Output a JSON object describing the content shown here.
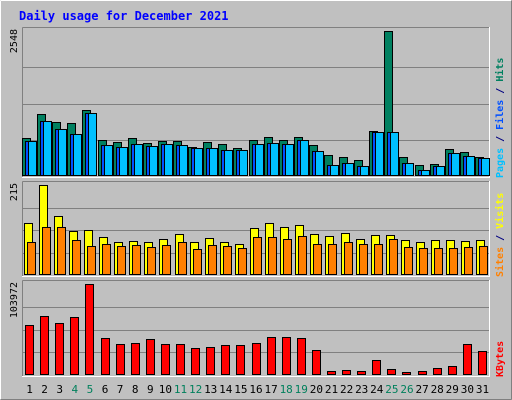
{
  "chart_data": {
    "type": "bar",
    "title": "Daily usage for December 2021",
    "categories": [
      "1",
      "2",
      "3",
      "4",
      "5",
      "6",
      "7",
      "8",
      "9",
      "10",
      "11",
      "12",
      "13",
      "14",
      "15",
      "16",
      "17",
      "18",
      "19",
      "20",
      "21",
      "22",
      "23",
      "24",
      "25",
      "26",
      "27",
      "28",
      "29",
      "30",
      "31"
    ],
    "weekend_days": [
      "4",
      "5",
      "11",
      "12",
      "18",
      "19",
      "25",
      "26"
    ],
    "panels": [
      {
        "id": "hits-files-pages",
        "max_label": "2548",
        "ymax": 2548,
        "legend": [
          {
            "text": "Pages",
            "color": "#00c0ff"
          },
          {
            "text": " / ",
            "color": "#000080"
          },
          {
            "text": "Files",
            "color": "#0050ff"
          },
          {
            "text": " / ",
            "color": "#000080"
          },
          {
            "text": "Hits",
            "color": "#008060"
          }
        ],
        "series": [
          {
            "name": "Hits",
            "color": "#008060",
            "values": [
              665,
              1097,
              943,
              931,
              1152,
              641,
              605,
              662,
              578,
              617,
              622,
              515,
              599,
              554,
              495,
              626,
              690,
              626,
              692,
              540,
              374,
              328,
              279,
              788,
              2548,
              328,
              185,
              210,
              467,
              424,
              332
            ]
          },
          {
            "name": "Files",
            "color": "#0050ff",
            "values": [
              612,
              964,
              831,
              735,
              1110,
              536,
              507,
              567,
              519,
              555,
              542,
              493,
              493,
              463,
              449,
              563,
              573,
              569,
              628,
              434,
              190,
              237,
              172,
              769,
              767,
              225,
              106,
              169,
              402,
              357,
              312
            ]
          },
          {
            "name": "Pages",
            "color": "#00c0ff",
            "values": [
              612,
              964,
              831,
              735,
              1110,
              536,
              507,
              567,
              519,
              555,
              542,
              493,
              493,
              463,
              449,
              563,
              573,
              569,
              628,
              434,
              190,
              237,
              172,
              769,
              767,
              225,
              106,
              169,
              402,
              357,
              312
            ]
          }
        ]
      },
      {
        "id": "visits-sites",
        "max_label": "215",
        "ymax": 215,
        "legend": [
          {
            "text": "Sites",
            "color": "#ff8000"
          },
          {
            "text": " / ",
            "color": "#000080"
          },
          {
            "text": "Visits",
            "color": "#ffff00"
          }
        ],
        "series": [
          {
            "name": "Visits",
            "color": "#ffff00",
            "values": [
              125,
              215,
              142,
              105,
              108,
              91,
              78,
              82,
              80,
              86,
              98,
              78,
              88,
              80,
              73,
              112,
              125,
              114,
              120,
              98,
              93,
              100,
              86,
              96,
              95,
              84,
              80,
              83,
              83,
              82,
              83
            ]
          },
          {
            "name": "Sites",
            "color": "#ff8000",
            "values": [
              78,
              114,
              115,
              84,
              70,
              75,
              70,
              72,
              68,
              72,
              79,
              63,
              71,
              70,
              64,
              90,
              91,
              85,
              93,
              74,
              75,
              78,
              74,
              75,
              87,
              66,
              64,
              64,
              65,
              67,
              70
            ]
          }
        ]
      },
      {
        "id": "kbytes",
        "max_label": "103972",
        "ymax": 103972,
        "legend": [
          {
            "text": "KBytes",
            "color": "#ff0000"
          }
        ],
        "series": [
          {
            "name": "KBytes",
            "color": "#ff0000",
            "values": [
              57670,
              67010,
              59000,
              66740,
              103972,
              42680,
              35020,
              36240,
              40640,
              34920,
              34920,
              31350,
              31830,
              33730,
              34510,
              36020,
              43000,
              42890,
              42690,
              28520,
              5110,
              5150,
              5040,
              17470,
              6710,
              3850,
              4250,
              7550,
              10260,
              35410,
              26870
            ]
          }
        ]
      }
    ]
  },
  "colors": {
    "background": "#c0c0c0",
    "title": "#0000ff",
    "axis_label": "#000000",
    "weekday": "#000000",
    "weekend": "#00805c",
    "frame_dark": "#808080",
    "frame_light": "#ffffff"
  }
}
